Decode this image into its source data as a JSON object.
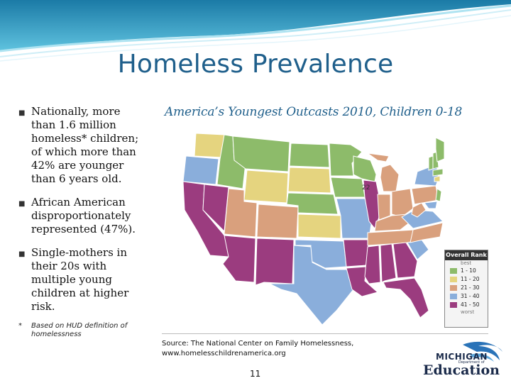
{
  "slide": {
    "title": "Homeless Prevalence",
    "page_number": "11"
  },
  "bullets": [
    {
      "text": "Nationally, more than 1.6 million homeless* children; of which more than 42% are younger than 6 years old."
    },
    {
      "text": "African American disproportionately represented (47%)."
    },
    {
      "text": "Single-mothers in their 20s with multiple young children at higher risk."
    }
  ],
  "footnote": {
    "marker": "*",
    "text": "Based on HUD definition of homelessness"
  },
  "map": {
    "title": "America’s Youngest Outcasts 2010, Children 0-18",
    "annotation": "22",
    "legend": {
      "title": "Overall Rank",
      "top_label": "best",
      "bottom_label": "worst",
      "items": [
        {
          "label": "1 - 10",
          "color": "#8dbb6a"
        },
        {
          "label": "11 - 20",
          "color": "#e5d47f"
        },
        {
          "label": "21 - 30",
          "color": "#d9a07d"
        },
        {
          "label": "31 - 40",
          "color": "#8aaedb"
        },
        {
          "label": "41 - 50",
          "color": "#9b3c7f"
        }
      ]
    }
  },
  "source": {
    "line1": "Source: The National Center on Family Homelessness,",
    "line2": "www.homelesschildrenamerica.org"
  },
  "logo": {
    "text_top": "MICHIGAN",
    "text_dept": "Department of",
    "text_main": "Education"
  }
}
